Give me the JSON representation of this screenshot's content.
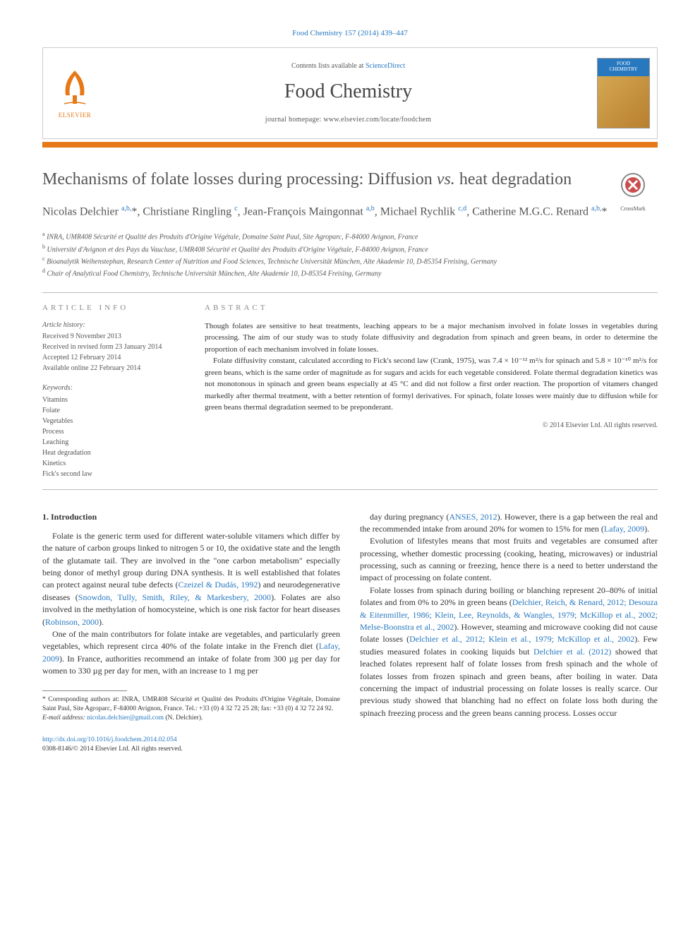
{
  "journal_ref": "Food Chemistry 157 (2014) 439–447",
  "header": {
    "contents_text": "Contents lists available at ",
    "contents_link": "ScienceDirect",
    "journal_name": "Food Chemistry",
    "homepage_label": "journal homepage: www.elsevier.com/locate/foodchem",
    "publisher": "ELSEVIER",
    "cover_label_top": "FOOD",
    "cover_label_bottom": "CHEMISTRY"
  },
  "colors": {
    "orange": "#e67817",
    "link_blue": "#2878c0",
    "text_gray": "#555555",
    "border_gray": "#cccccc"
  },
  "title_parts": {
    "pre": "Mechanisms of folate losses during processing: Diffusion ",
    "italic": "vs.",
    "post": " heat degradation"
  },
  "crossmark_label": "CrossMark",
  "authors_html": "Nicolas Delchier <sup>a,b,</sup><span class='star'>*</span>, Christiane Ringling <sup>c</sup>, Jean-François Maingonnat <sup>a,b</sup>, Michael Rychlik <sup>c,d</sup>, Catherine M.G.C. Renard <sup>a,b,</sup><span class='star'>*</span>",
  "affiliations": [
    {
      "sup": "a",
      "text": "INRA, UMR408 Sécurité et Qualité des Produits d'Origine Végétale, Domaine Saint Paul, Site Agroparc, F-84000 Avignon, France"
    },
    {
      "sup": "b",
      "text": "Université d'Avignon et des Pays du Vaucluse, UMR408 Sécurité et Qualité des Produits d'Origine Végétale, F-84000 Avignon, France"
    },
    {
      "sup": "c",
      "text": "Bioanalytik Weihenstephan, Research Center of Nutrition and Food Sciences, Technische Universität München, Alte Akademie 10, D-85354 Freising, Germany"
    },
    {
      "sup": "d",
      "text": "Chair of Analytical Food Chemistry, Technische Universität München, Alte Akademie 10, D-85354 Freising, Germany"
    }
  ],
  "article_info": {
    "heading": "ARTICLE INFO",
    "history_label": "Article history:",
    "history": [
      "Received 9 November 2013",
      "Received in revised form 23 January 2014",
      "Accepted 12 February 2014",
      "Available online 22 February 2014"
    ],
    "keywords_label": "Keywords:",
    "keywords": [
      "Vitamins",
      "Folate",
      "Vegetables",
      "Process",
      "Leaching",
      "Heat degradation",
      "Kinetics",
      "Fick's second law"
    ]
  },
  "abstract": {
    "heading": "ABSTRACT",
    "paragraphs": [
      "Though folates are sensitive to heat treatments, leaching appears to be a major mechanism involved in folate losses in vegetables during processing. The aim of our study was to study folate diffusivity and degradation from spinach and green beans, in order to determine the proportion of each mechanism involved in folate losses.",
      "Folate diffusivity constant, calculated according to Fick's second law (Crank, 1975), was 7.4 × 10⁻¹² m²/s for spinach and 5.8 × 10⁻¹⁰ m²/s for green beans, which is the same order of magnitude as for sugars and acids for each vegetable considered. Folate thermal degradation kinetics was not monotonous in spinach and green beans especially at 45 °C and did not follow a first order reaction. The proportion of vitamers changed markedly after thermal treatment, with a better retention of formyl derivatives. For spinach, folate losses were mainly due to diffusion while for green beans thermal degradation seemed to be preponderant."
    ],
    "copyright": "© 2014 Elsevier Ltd. All rights reserved."
  },
  "intro": {
    "heading": "1. Introduction",
    "col1": [
      {
        "type": "p",
        "html": "Folate is the generic term used for different water-soluble vitamers which differ by the nature of carbon groups linked to nitrogen 5 or 10, the oxidative state and the length of the glutamate tail. They are involved in the \"one carbon metabolism\" especially being donor of methyl group during DNA synthesis. It is well established that folates can protect against neural tube defects (<a class='ref-link'>Czeizel &amp; Dudás, 1992</a>) and neurodegenerative diseases (<a class='ref-link'>Snowdon, Tully, Smith, Riley, &amp; Markesbery, 2000</a>). Folates are also involved in the methylation of homocysteine, which is one risk factor for heart diseases (<a class='ref-link'>Robinson, 2000</a>)."
      },
      {
        "type": "p",
        "html": "One of the main contributors for folate intake are vegetables, and particularly green vegetables, which represent circa 40% of the folate intake in the French diet (<a class='ref-link'>Lafay, 2009</a>). In France, authorities recommend an intake of folate from 300 µg per day for women to 330 µg per day for men, with an increase to 1 mg per"
      }
    ],
    "col2": [
      {
        "type": "p",
        "html": "day during pregnancy (<a class='ref-link'>ANSES, 2012</a>). However, there is a gap between the real and the recommended intake from around 20% for women to 15% for men (<a class='ref-link'>Lafay, 2009</a>)."
      },
      {
        "type": "p",
        "html": "Evolution of lifestyles means that most fruits and vegetables are consumed after processing, whether domestic processing (cooking, heating, microwaves) or industrial processing, such as canning or freezing, hence there is a need to better understand the impact of processing on folate content."
      },
      {
        "type": "p",
        "html": "Folate losses from spinach during boiling or blanching represent 20–80% of initial folates and from 0% to 20% in green beans (<a class='ref-link'>Delchier, Reich, &amp; Renard, 2012; Desouza &amp; Eitenmiller, 1986; Klein, Lee, Reynolds, &amp; Wangles, 1979; McKillop et al., 2002; Melse-Boonstra et al., 2002</a>). However, steaming and microwave cooking did not cause folate losses (<a class='ref-link'>Delchier et al., 2012; Klein et al., 1979; McKillop et al., 2002</a>). Few studies measured folates in cooking liquids but <a class='ref-link'>Delchier et al. (2012)</a> showed that leached folates represent half of folate losses from fresh spinach and the whole of folates losses from frozen spinach and green beans, after boiling in water. Data concerning the impact of industrial processing on folate losses is really scarce. Our previous study showed that blanching had no effect on folate loss both during the spinach freezing process and the green beans canning process. Losses occur"
      }
    ]
  },
  "footer": {
    "corresponding_label": "* Corresponding authors at: INRA, UMR408 Sécurité et Qualité des Produits d'Origine Végétale, Domaine Saint Paul, Site Agroparc, F-84000 Avignon, France. Tel.: +33 (0) 4 32 72 25 28; fax: +33 (0) 4 32 72 24 92.",
    "email_label": "E-mail address:",
    "email": "nicolas.delchier@gmail.com",
    "email_name": "(N. Delchier).",
    "doi": "http://dx.doi.org/10.1016/j.foodchem.2014.02.054",
    "issn_copyright": "0308-8146/© 2014 Elsevier Ltd. All rights reserved."
  }
}
